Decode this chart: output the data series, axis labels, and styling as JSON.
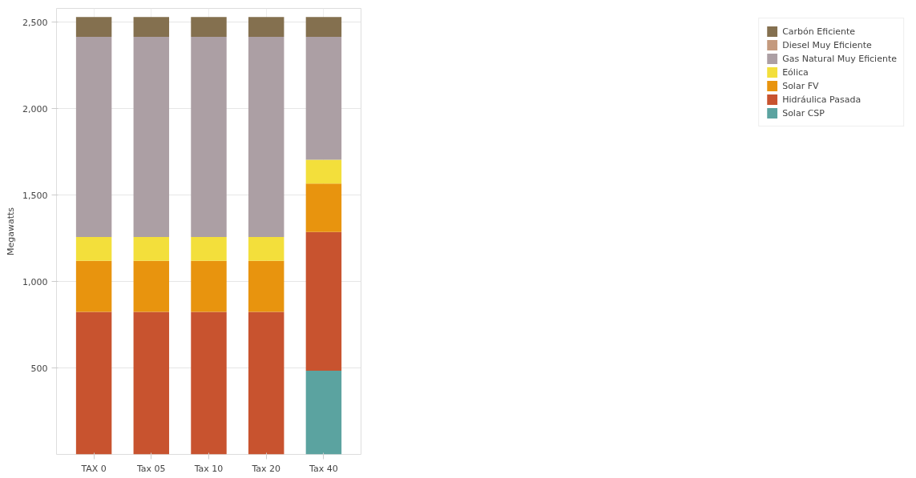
{
  "chart_data": {
    "type": "bar",
    "stacked": true,
    "ylabel": "Megawatts",
    "categories": [
      "TAX 0",
      "Tax 05",
      "Tax 10",
      "Tax 20",
      "Tax 40"
    ],
    "series": [
      {
        "name": "Solar CSP",
        "color": "#5ba3a0",
        "values": [
          0,
          0,
          0,
          0,
          484
        ]
      },
      {
        "name": "Hidráulica Pasada",
        "color": "#c8532f",
        "values": [
          825,
          825,
          825,
          825,
          802
        ]
      },
      {
        "name": "Solar FV",
        "color": "#e8940e",
        "values": [
          295,
          295,
          295,
          295,
          281
        ]
      },
      {
        "name": "Eólica",
        "color": "#f3df3b",
        "values": [
          138,
          138,
          138,
          138,
          138
        ]
      },
      {
        "name": "Gas Natural Muy Eficiente",
        "color": "#ac9fa4",
        "values": [
          1157,
          1157,
          1157,
          1157,
          710
        ]
      },
      {
        "name": "Diesel Muy Eficiente",
        "color": "#c49a7e",
        "values": [
          0,
          0,
          0,
          0,
          0
        ]
      },
      {
        "name": "Carbón Eficiente",
        "color": "#84704f",
        "values": [
          115,
          115,
          115,
          115,
          115
        ]
      }
    ],
    "ylim": [
      0,
      2580
    ],
    "yticks": [
      500,
      {
        "value": 1000,
        "label": "1,000"
      },
      {
        "value": 1500,
        "label": "1,500"
      },
      {
        "value": 2000,
        "label": "2,000"
      },
      {
        "value": 2500,
        "label": "2,500"
      }
    ],
    "grid": true,
    "legend": "top right"
  }
}
